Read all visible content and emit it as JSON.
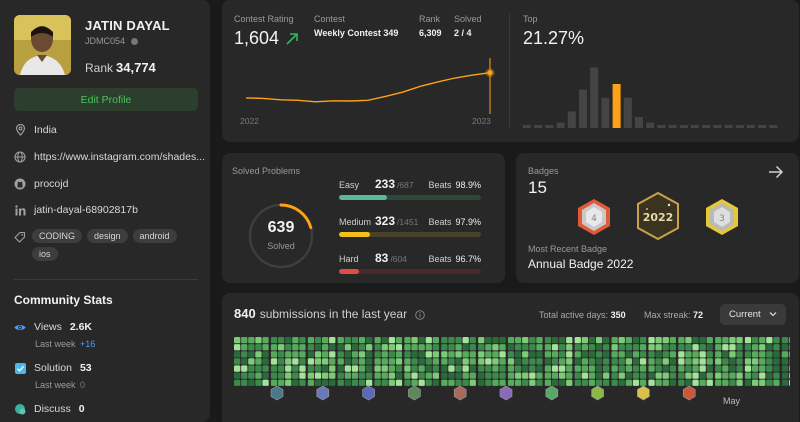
{
  "profile": {
    "name": "JATIN DAYAL",
    "username": "JDMC054",
    "rank_label": "Rank",
    "rank_value": "34,774",
    "edit_button": "Edit Profile",
    "location": "India",
    "website": "https://www.instagram.com/shades...",
    "github": "procojd",
    "linkedin": "jatin-dayal-68902817b",
    "tags": [
      "CODING",
      "design",
      "android",
      "ios"
    ]
  },
  "community": {
    "title": "Community Stats",
    "views_label": "Views",
    "views_value": "2.6K",
    "views_week_label": "Last week",
    "views_week_value": "+16",
    "solution_label": "Solution",
    "solution_value": "53",
    "solution_week_label": "Last week",
    "solution_week_value": "0",
    "discuss_label": "Discuss",
    "discuss_value": "0"
  },
  "contest": {
    "rating_label": "Contest Rating",
    "rating_value": "1,604",
    "contest_label": "Contest",
    "contest_value": "Weekly Contest 349",
    "rank_label": "Rank",
    "rank_value": "6,309",
    "solved_label": "Solved",
    "solved_value": "2 / 4",
    "top_label": "Top",
    "top_value": "21.27%",
    "axis_start": "2022",
    "axis_end": "2023"
  },
  "solved": {
    "title": "Solved Problems",
    "total": "639",
    "total_label": "Solved",
    "easy": {
      "name": "Easy",
      "count": "233",
      "total": "/687",
      "beats_label": "Beats",
      "beats": "98.9%"
    },
    "medium": {
      "name": "Medium",
      "count": "323",
      "total": "/1451",
      "beats_label": "Beats",
      "beats": "97.9%"
    },
    "hard": {
      "name": "Hard",
      "count": "83",
      "total": "/604",
      "beats_label": "Beats",
      "beats": "96.7%"
    }
  },
  "badges": {
    "label": "Badges",
    "count": "15",
    "recent_label": "Most Recent Badge",
    "recent_name": "Annual Badge 2022",
    "badge2_text": "2022"
  },
  "heatmap": {
    "count": "840",
    "text": "submissions in the last year",
    "active_label": "Total active days:",
    "active_value": "350",
    "streak_label": "Max streak:",
    "streak_value": "72",
    "select_value": "Current",
    "last_month": "May"
  },
  "colors": {
    "accent_orange": "#ffa116",
    "easy": "#2cbb5d",
    "medium": "#ffb800",
    "hard": "#ef4743",
    "link_blue": "#4a9dff",
    "edit_green": "#4cc15a"
  },
  "chart_data": [
    {
      "type": "line",
      "title": "Contest Rating",
      "x": [
        0,
        1,
        2,
        3,
        4,
        5,
        6,
        7,
        8,
        9,
        10,
        11,
        12,
        13,
        14
      ],
      "values": [
        1500,
        1498,
        1492,
        1490,
        1484,
        1488,
        1487,
        1490,
        1506,
        1524,
        1548,
        1566,
        1582,
        1594,
        1604
      ],
      "xlabel_ticks": [
        "2022",
        "2023"
      ],
      "ylim": [
        1450,
        1640
      ]
    },
    {
      "type": "bar",
      "title": "Top",
      "values": [
        1,
        1,
        1,
        2,
        6,
        14,
        22,
        11,
        16,
        11,
        4,
        2,
        1,
        1,
        1,
        1,
        1,
        1,
        1,
        1,
        1,
        1,
        1
      ],
      "highlight_index": 8,
      "ylim": [
        0,
        24
      ]
    }
  ]
}
